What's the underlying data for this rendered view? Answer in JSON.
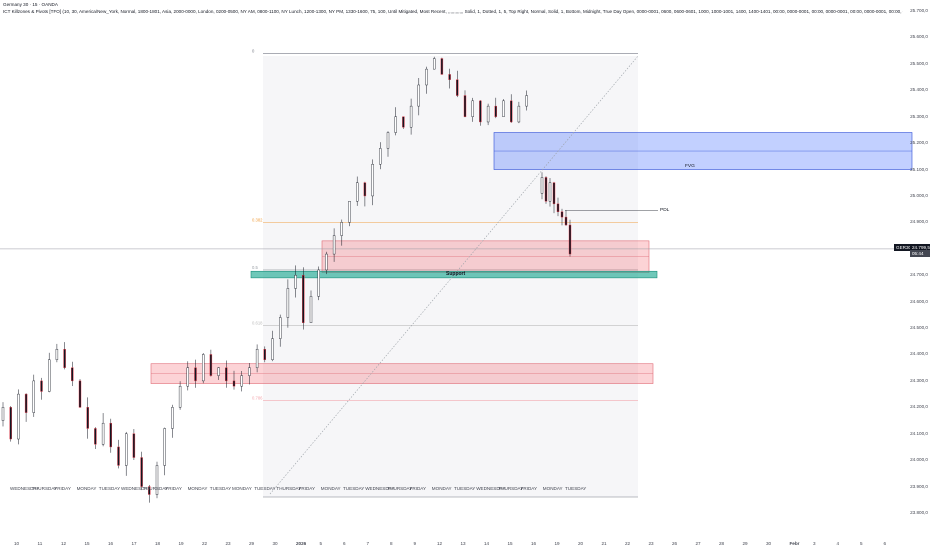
{
  "header": {
    "symbol_line": "Germany 30 · 15 · OANDA",
    "indicator_line": "ICT Killzones & Pivots [TFO] (10, 30, America/New_York, Normal, 1800-1801, Asia, 2000-0000, London, 0200-0500, NY AM, 0800-1100, NY Lunch, 1200-1300, NY PM, 1330-1600, 75, 100, Until Mitigated, Most Recent, ,,,,,,,,,,,, Solid, 1, Dotted, 1, 5, Top Right, Normal, Solid, 1, Bottom, Midnight, True Day Open, 0000-0001, 0600, 0600-0601, 1000, 1000-1001, 1400, 1400-1401, 00:00, 0000-0001, 00:00, 0000-0001, 00:00, 0000-0001, 00:00, 0000-0001, Dotted, 1, 0000-0001, 0800-0801, 1000-1001, 1200-1201, Dotted, 1)"
  },
  "chart_data": {
    "type": "candlestick",
    "title": "Germany 30 · 15 · OANDA",
    "y_axis": {
      "min": 23800,
      "max": 25700,
      "tick_labels": [
        "25.700,0",
        "25.600,0",
        "25.500,0",
        "25.400,0",
        "25.300,0",
        "25.200,0",
        "25.100,0",
        "25.000,0",
        "24.900,0",
        "24.800,0",
        "24.700,0",
        "24.600,0",
        "24.500,0",
        "24.400,0",
        "24.300,0",
        "24.200,0",
        "24.100,0",
        "24.000,0",
        "23.900,0",
        "23.800,0"
      ],
      "tick_values": [
        25700,
        25600,
        25500,
        25400,
        25300,
        25200,
        25100,
        25000,
        24900,
        24800,
        24700,
        24600,
        24500,
        24400,
        24300,
        24200,
        24100,
        24000,
        23900,
        23800
      ]
    },
    "current_price": {
      "value": 24799.5,
      "label": "GER30EUR",
      "price_text": "24.799,5",
      "countdown": "05:44"
    },
    "x_axis": {
      "date_labels": [
        "10",
        "11",
        "12",
        "15",
        "16",
        "17",
        "18",
        "19",
        "22",
        "23",
        "29",
        "30",
        "2026",
        "5",
        "6",
        "7",
        "8",
        "9",
        "12",
        "13",
        "14",
        "15",
        "16",
        "19",
        "20",
        "21",
        "22",
        "23",
        "26",
        "27",
        "28",
        "29",
        "30",
        "Febr",
        "3",
        "4",
        "5",
        "6"
      ],
      "day_labels": [
        "WEDNESDAY",
        "THURSDAY",
        "FRIDAY",
        "MONDAY",
        "TUESDAY",
        "WEDNESDAY",
        "THURSDAY",
        "FRIDAY",
        "MONDAY",
        "TUESDAY",
        "MONDAY",
        "TUESDAY",
        "THURSDAY",
        "FRIDAY",
        "MONDAY",
        "TUESDAY",
        "WEDNESDAY",
        "THURSDAY",
        "FRIDAY",
        "MONDAY",
        "TUESDAY",
        "WEDNESDAY",
        "THURSDAY",
        "FRIDAY",
        "MONDAY",
        "TUESDAY"
      ]
    },
    "price_path": [
      24150,
      24200,
      24080,
      24250,
      24180,
      24300,
      24260,
      24380,
      24420,
      24350,
      24300,
      24200,
      24120,
      24060,
      24140,
      24050,
      23980,
      24100,
      24010,
      23900,
      23870,
      23980,
      24120,
      24200,
      24280,
      24350,
      24300,
      24400,
      24320,
      24350,
      24300,
      24280,
      24320,
      24350,
      24420,
      24380,
      24460,
      24540,
      24650,
      24700,
      24520,
      24620,
      24720,
      24780,
      24850,
      24900,
      24980,
      25050,
      25000,
      25120,
      25180,
      25240,
      25300,
      25260,
      25340,
      25420,
      25480,
      25520,
      25460,
      25440,
      25380,
      25300,
      25360,
      25280,
      25340,
      25300,
      25360,
      25280,
      25340,
      25380
    ],
    "price_path_2": [
      25010,
      25070,
      24980,
      25050,
      24970,
      24940,
      24920,
      24890,
      24780
    ],
    "zones": [
      {
        "label": "FVG",
        "kind": "blue",
        "top": 25240,
        "bottom": 25100
      },
      {
        "label": "",
        "kind": "red",
        "top": 24830,
        "bottom": 24710
      },
      {
        "label": "Support",
        "kind": "green",
        "top": 24715,
        "bottom": 24690
      },
      {
        "label": "",
        "kind": "red",
        "top": 24365,
        "bottom": 24290
      }
    ],
    "fib_levels": [
      {
        "label": "0",
        "value": 25540
      },
      {
        "label": "0.382",
        "value": 24900
      },
      {
        "label": "0.5",
        "value": 24720
      },
      {
        "label": "0.618",
        "value": 24510
      },
      {
        "label": "0.786",
        "value": 24225
      }
    ],
    "markers": [
      {
        "label": "PDL",
        "value": 24945
      },
      {
        "label": "FVG",
        "value": 25115
      }
    ]
  }
}
